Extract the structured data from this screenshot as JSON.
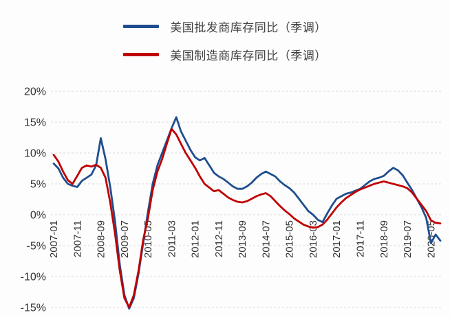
{
  "page": {
    "background": "#fdfdfd"
  },
  "legend": {
    "items": [
      {
        "label": "美国批发商库存同比（季调）",
        "color": "#1f4e8f"
      },
      {
        "label": "美国制造商库存同比（季调）",
        "color": "#c00000"
      }
    ]
  },
  "chart_data": {
    "type": "line",
    "title": "",
    "xlabel": "",
    "ylabel": "",
    "ylim": [
      -15,
      20
    ],
    "y_tick_values": [
      20,
      15,
      10,
      5,
      0,
      -5,
      -10,
      -15
    ],
    "y_tick_labels": [
      "20%",
      "15%",
      "10%",
      "5%",
      "0%",
      "-5%",
      "-10%",
      "-15%"
    ],
    "x_max": 164,
    "x_tick_positions": [
      0,
      10,
      20,
      30,
      40,
      50,
      60,
      70,
      80,
      90,
      100,
      110,
      120,
      130,
      140,
      150,
      160
    ],
    "x_tick_labels": [
      "2007-01",
      "2007-11",
      "2008-09",
      "2009-07",
      "2010-05",
      "2011-03",
      "2012-01",
      "2012-11",
      "2013-09",
      "2014-07",
      "2015-05",
      "2016-03",
      "2017-01",
      "2017-11",
      "2018-09",
      "2019-07",
      "2020-05"
    ],
    "x_unit": "months since 2007-01, sampled every 2 months",
    "grid": {
      "horizontal": true,
      "style": "dashed",
      "color": "#d9d9d9"
    },
    "legend_position": "top",
    "x": [
      0,
      2,
      4,
      6,
      8,
      10,
      12,
      14,
      16,
      18,
      20,
      22,
      24,
      26,
      28,
      30,
      32,
      34,
      36,
      38,
      40,
      42,
      44,
      46,
      48,
      50,
      52,
      54,
      56,
      58,
      60,
      62,
      64,
      66,
      68,
      70,
      72,
      74,
      76,
      78,
      80,
      82,
      84,
      86,
      88,
      90,
      92,
      94,
      96,
      98,
      100,
      102,
      104,
      106,
      108,
      110,
      112,
      114,
      116,
      118,
      120,
      122,
      124,
      126,
      128,
      130,
      132,
      134,
      136,
      138,
      140,
      142,
      144,
      146,
      148,
      150,
      152,
      154,
      156,
      158,
      160,
      162,
      164
    ],
    "series": [
      {
        "name": "美国批发商库存同比（季调）",
        "color": "#1f4e8f",
        "values": [
          8.3,
          7.5,
          6.0,
          5.0,
          4.7,
          4.5,
          5.5,
          6.0,
          6.5,
          8.0,
          12.4,
          9.0,
          4.5,
          -1.0,
          -8.0,
          -13.0,
          -15.2,
          -13.5,
          -9.5,
          -4.5,
          0.5,
          5.0,
          8.0,
          10.0,
          12.0,
          14.0,
          15.8,
          13.5,
          12.0,
          10.5,
          9.3,
          8.8,
          9.2,
          8.0,
          6.8,
          6.2,
          5.8,
          5.2,
          4.6,
          4.2,
          4.2,
          4.6,
          5.2,
          6.0,
          6.6,
          7.0,
          6.6,
          6.2,
          5.4,
          4.8,
          4.3,
          3.6,
          2.6,
          1.6,
          0.6,
          0.0,
          -0.8,
          -1.2,
          0.2,
          1.5,
          2.6,
          3.0,
          3.4,
          3.6,
          3.9,
          4.2,
          4.8,
          5.4,
          5.8,
          6.0,
          6.3,
          7.0,
          7.6,
          7.2,
          6.4,
          5.2,
          4.0,
          2.6,
          1.2,
          -0.5,
          -4.6,
          -3.2,
          -4.2
        ]
      },
      {
        "name": "美国制造商库存同比（季调）",
        "color": "#c00000",
        "values": [
          9.7,
          8.6,
          7.0,
          5.6,
          5.0,
          6.3,
          7.6,
          8.0,
          7.8,
          8.1,
          7.6,
          6.0,
          2.0,
          -3.0,
          -9.0,
          -13.5,
          -15.0,
          -13.0,
          -9.0,
          -4.0,
          -0.5,
          4.0,
          7.0,
          9.0,
          11.5,
          13.9,
          13.0,
          11.5,
          10.0,
          8.8,
          7.6,
          6.2,
          5.0,
          4.4,
          3.8,
          4.0,
          3.4,
          2.8,
          2.4,
          2.1,
          2.0,
          2.2,
          2.6,
          3.0,
          3.3,
          3.5,
          3.0,
          2.2,
          1.4,
          0.7,
          0.1,
          -0.6,
          -1.1,
          -1.6,
          -1.9,
          -2.1,
          -2.0,
          -1.6,
          -0.8,
          0.2,
          1.2,
          2.0,
          2.7,
          3.2,
          3.7,
          4.1,
          4.4,
          4.7,
          5.0,
          5.2,
          5.4,
          5.2,
          5.0,
          4.8,
          4.6,
          4.3,
          3.6,
          2.6,
          1.6,
          0.6,
          -0.9,
          -1.3,
          -1.4
        ]
      }
    ]
  }
}
